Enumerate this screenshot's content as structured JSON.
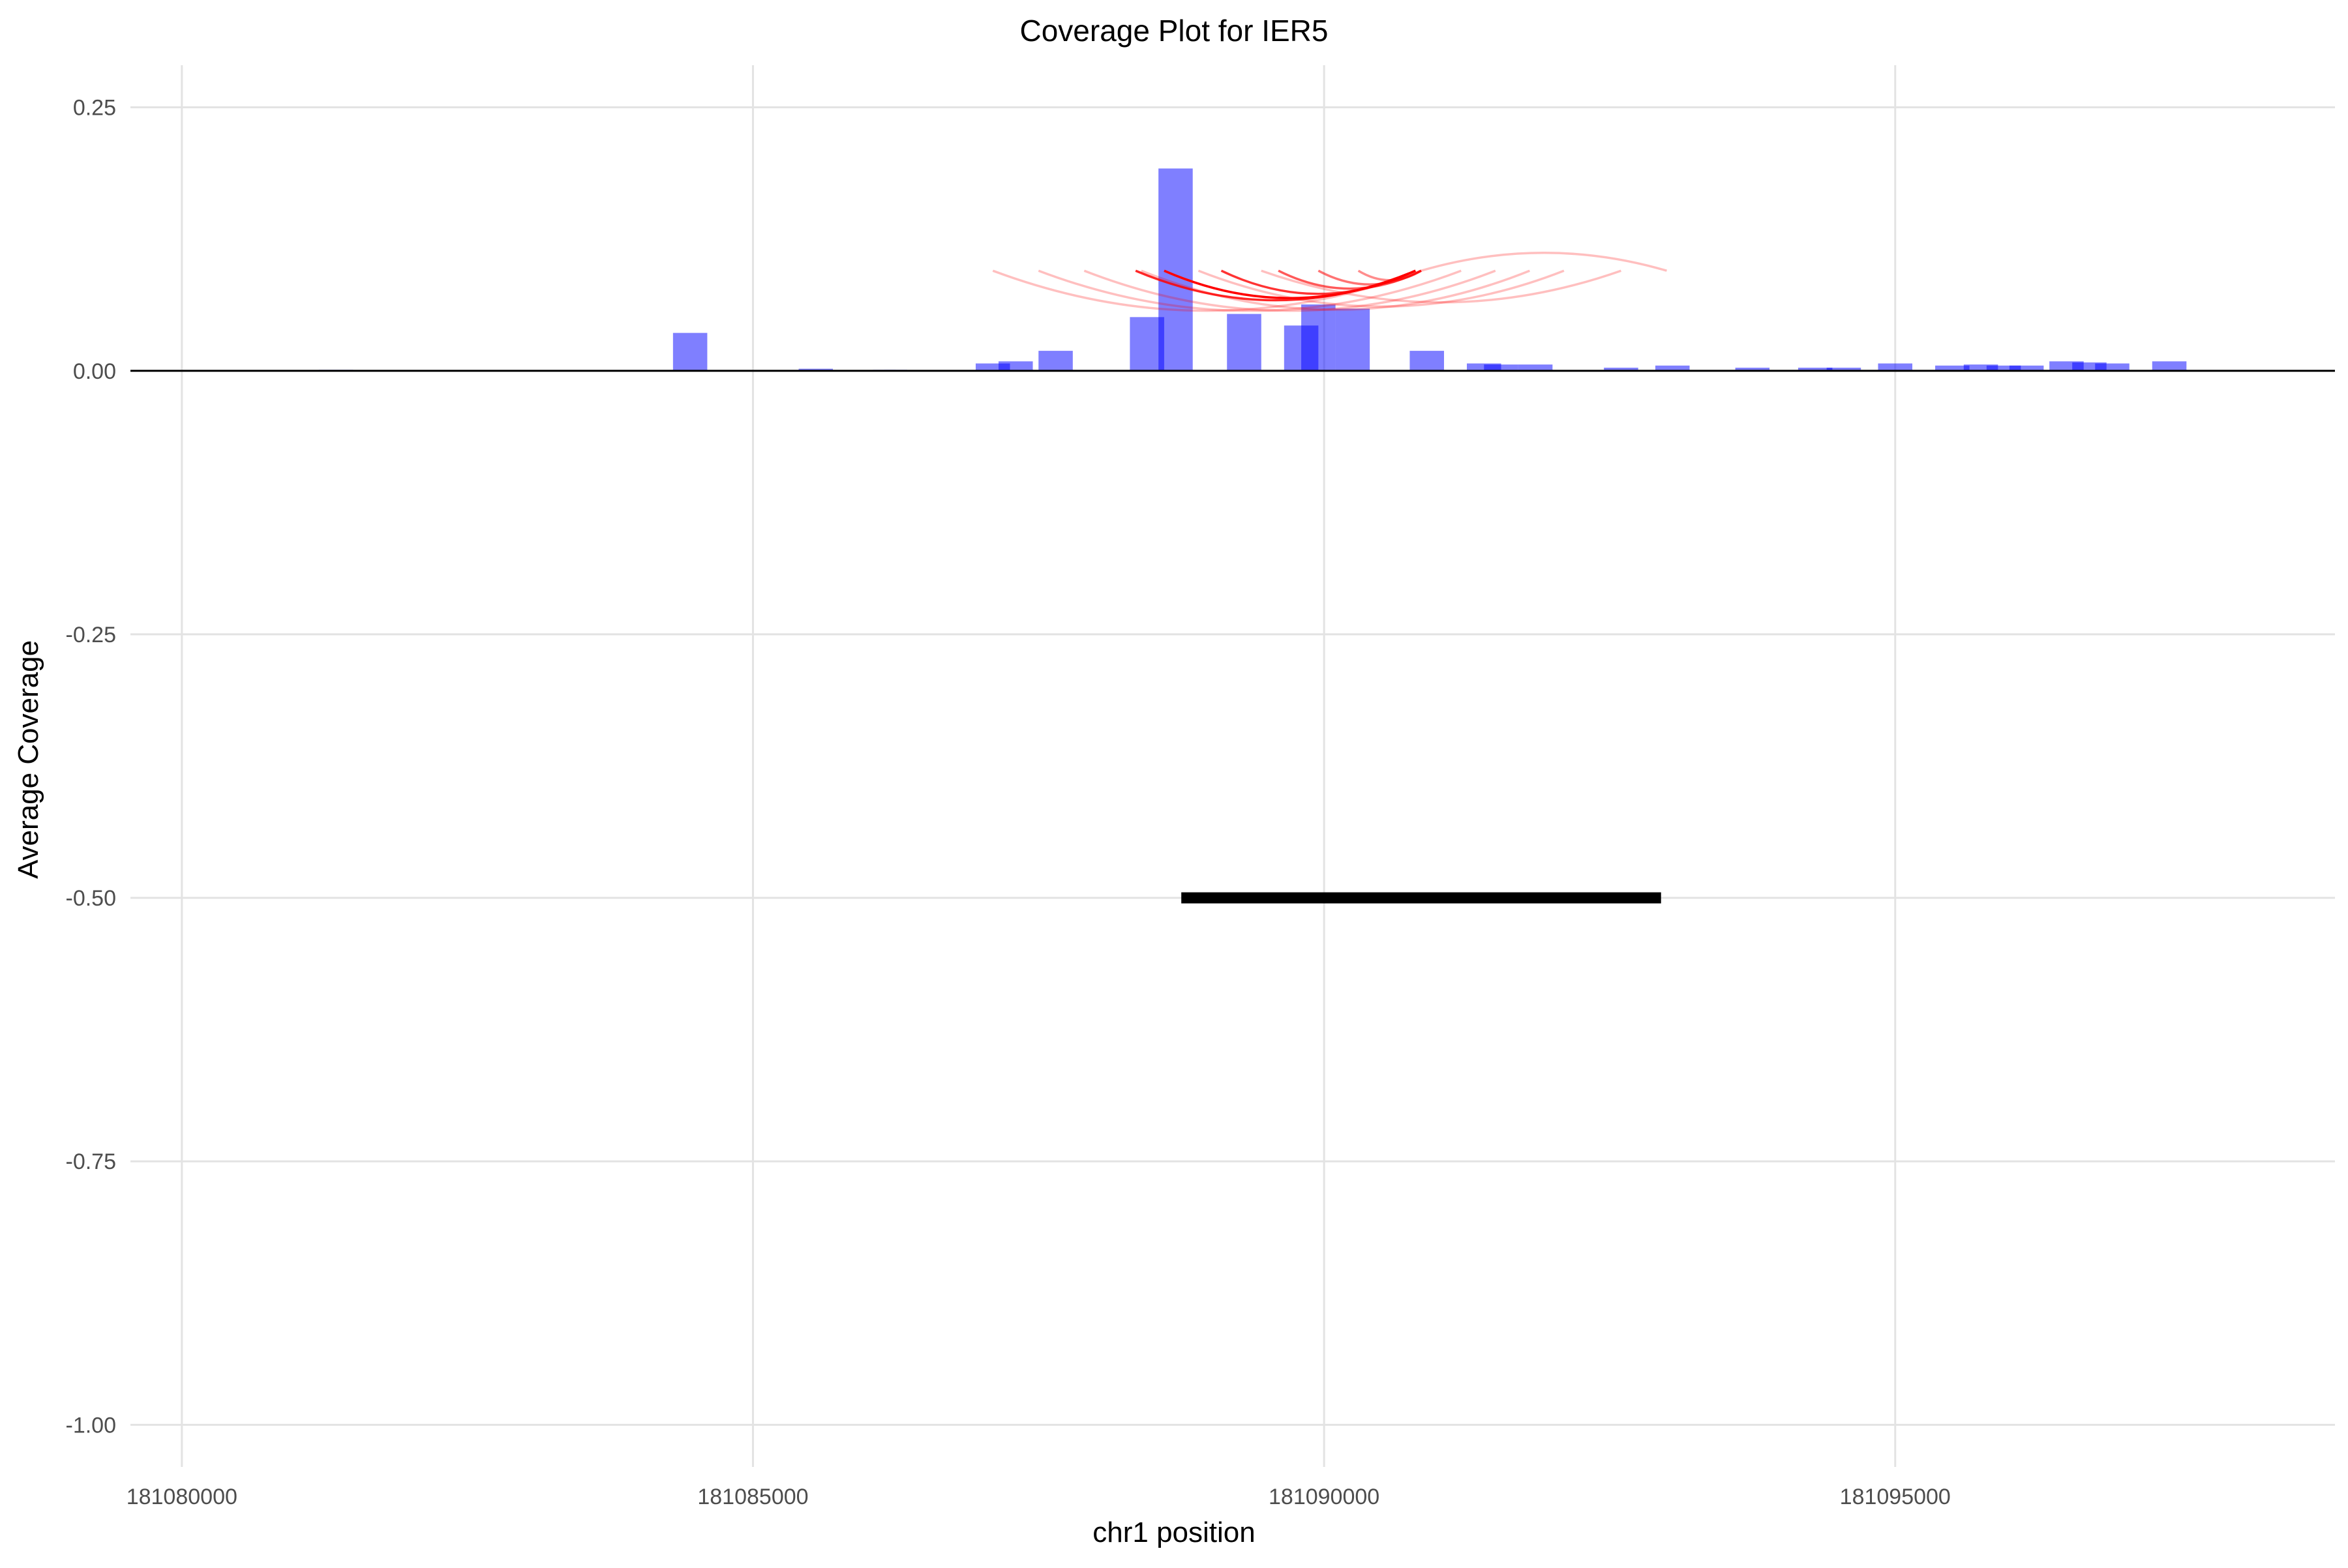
{
  "chart_data": {
    "type": "bar",
    "title": "Coverage Plot for IER5",
    "xlabel": "chr1 position",
    "ylabel": "Average Coverage",
    "xlim": [
      181079550,
      181098850
    ],
    "ylim": [
      -1.04,
      0.29
    ],
    "x_ticks": [
      181080000,
      181085000,
      181090000,
      181095000
    ],
    "x_tick_labels": [
      "181080000",
      "181085000",
      "181090000",
      "181095000"
    ],
    "y_ticks": [
      0.25,
      0,
      -0.25,
      -0.5,
      -0.75,
      -1.0
    ],
    "y_tick_labels": [
      "0.25",
      "0.00",
      "-0.25",
      "-0.50",
      "-0.75",
      "-1.00"
    ],
    "grid": true,
    "legend": "none",
    "bar_color": "#7f7fff",
    "bar_opacity": 0.5,
    "link_color": "#ff0000",
    "gene_color": "#000000",
    "coverage_bars": [
      {
        "start": 181081200,
        "end": 181081500,
        "value": 0.001
      },
      {
        "start": 181084300,
        "end": 181084600,
        "value": 0.036
      },
      {
        "start": 181085400,
        "end": 181085700,
        "value": 0.002
      },
      {
        "start": 181086050,
        "end": 181086250,
        "value": 0.001
      },
      {
        "start": 181086150,
        "end": 181086350,
        "value": 0.001
      },
      {
        "start": 181086950,
        "end": 181087250,
        "value": 0.007
      },
      {
        "start": 181087150,
        "end": 181087450,
        "value": 0.009
      },
      {
        "start": 181087500,
        "end": 181087800,
        "value": 0.019
      },
      {
        "start": 181088300,
        "end": 181088600,
        "value": 0.051
      },
      {
        "start": 181088550,
        "end": 181088850,
        "value": 0.192
      },
      {
        "start": 181089150,
        "end": 181089450,
        "value": 0.054
      },
      {
        "start": 181089650,
        "end": 181089950,
        "value": 0.043
      },
      {
        "start": 181089800,
        "end": 181090100,
        "value": 0.063
      },
      {
        "start": 181090100,
        "end": 181090400,
        "value": 0.059
      },
      {
        "start": 181090750,
        "end": 181091050,
        "value": 0.019
      },
      {
        "start": 181091250,
        "end": 181091550,
        "value": 0.007
      },
      {
        "start": 181091400,
        "end": 181091700,
        "value": 0.006
      },
      {
        "start": 181091700,
        "end": 181092000,
        "value": 0.006
      },
      {
        "start": 181092450,
        "end": 181092750,
        "value": 0.003
      },
      {
        "start": 181092900,
        "end": 181093200,
        "value": 0.005
      },
      {
        "start": 181093600,
        "end": 181093900,
        "value": 0.003
      },
      {
        "start": 181094150,
        "end": 181094450,
        "value": 0.003
      },
      {
        "start": 181094400,
        "end": 181094700,
        "value": 0.003
      },
      {
        "start": 181094850,
        "end": 181095150,
        "value": 0.007
      },
      {
        "start": 181095350,
        "end": 181095650,
        "value": 0.005
      },
      {
        "start": 181095600,
        "end": 181095900,
        "value": 0.006
      },
      {
        "start": 181095800,
        "end": 181096100,
        "value": 0.005
      },
      {
        "start": 181096000,
        "end": 181096300,
        "value": 0.005
      },
      {
        "start": 181096350,
        "end": 181096650,
        "value": 0.009
      },
      {
        "start": 181096550,
        "end": 181096850,
        "value": 0.008
      },
      {
        "start": 181096750,
        "end": 181097050,
        "value": 0.007
      },
      {
        "start": 181097250,
        "end": 181097550,
        "value": 0.009
      }
    ],
    "links": [
      {
        "start": 181087100,
        "end": 181090850,
        "depth": 0.038,
        "opacity": 0.25
      },
      {
        "start": 181087500,
        "end": 181091200,
        "depth": 0.038,
        "opacity": 0.25
      },
      {
        "start": 181087900,
        "end": 181091500,
        "depth": 0.038,
        "opacity": 0.25
      },
      {
        "start": 181088400,
        "end": 181091800,
        "depth": 0.037,
        "opacity": 0.25
      },
      {
        "start": 181088900,
        "end": 181092100,
        "depth": 0.034,
        "opacity": 0.25
      },
      {
        "start": 181089450,
        "end": 181092600,
        "depth": 0.03,
        "opacity": 0.25
      },
      {
        "start": 181088350,
        "end": 181090800,
        "depth": 0.028,
        "opacity": 0.85
      },
      {
        "start": 181088600,
        "end": 181090800,
        "depth": 0.026,
        "opacity": 1.0
      },
      {
        "start": 181089100,
        "end": 181090800,
        "depth": 0.022,
        "opacity": 0.8
      },
      {
        "start": 181089600,
        "end": 181090850,
        "depth": 0.017,
        "opacity": 0.65
      },
      {
        "start": 181089950,
        "end": 181090850,
        "depth": 0.013,
        "opacity": 0.55
      },
      {
        "start": 181090300,
        "end": 181090850,
        "depth": 0.009,
        "opacity": 0.45
      },
      {
        "start": 181090850,
        "end": 181093000,
        "depth": -0.017,
        "opacity": 0.25
      }
    ],
    "gene": {
      "start": 181088750,
      "end": 181092950,
      "y": -0.5
    }
  }
}
